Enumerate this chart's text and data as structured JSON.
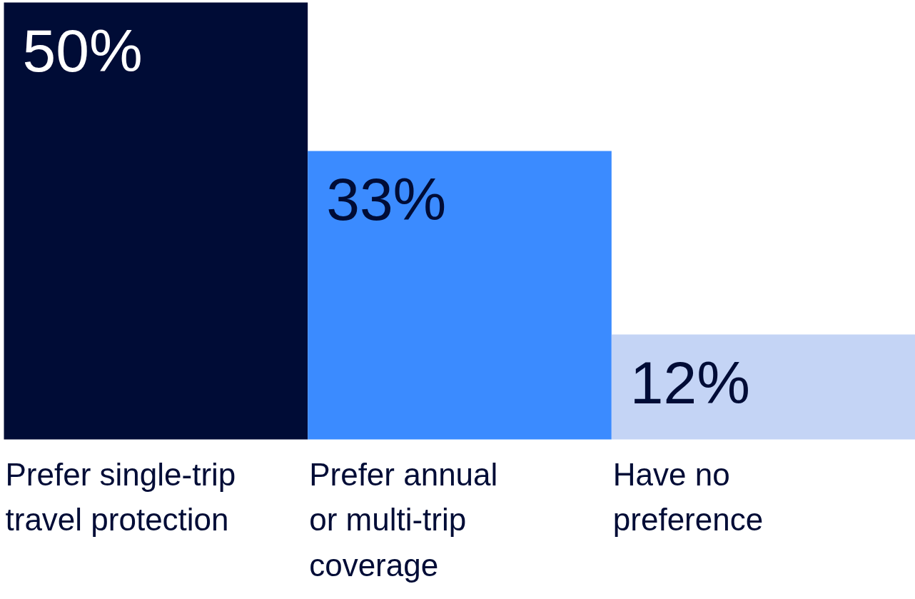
{
  "chart_data": {
    "type": "bar",
    "categories": [
      "Prefer single-trip\ntravel protection",
      "Prefer annual\nor multi-trip\ncoverage",
      "Have no\npreference"
    ],
    "values": [
      50,
      33,
      12
    ],
    "colors": [
      "#000c36",
      "#3b8bff",
      "#c4d4f5"
    ],
    "value_labels": [
      "50%",
      "33%",
      "12%"
    ]
  }
}
